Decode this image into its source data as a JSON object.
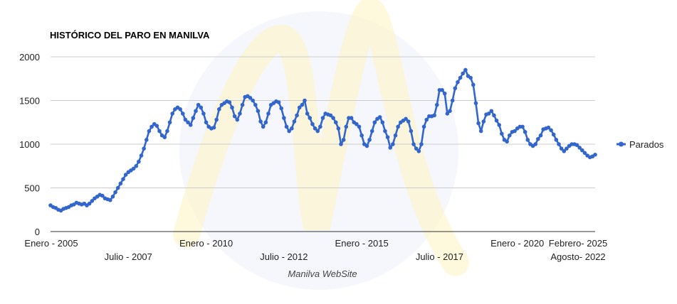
{
  "chart_data": {
    "type": "line",
    "title": "HISTÓRICO DEL PARO EN MANILVA",
    "source": "Manilva WebSite",
    "xlabel": "",
    "ylabel": "",
    "ylim": [
      0,
      2000
    ],
    "y_ticks": [
      0,
      500,
      1000,
      1500,
      2000
    ],
    "grid": true,
    "legend_position": "right",
    "x_tick_labels": [
      {
        "label": "Enero - 2005",
        "index": 0
      },
      {
        "label": "Julio - 2007",
        "index": 30
      },
      {
        "label": "Enero - 2010",
        "index": 60
      },
      {
        "label": "Julio - 2012",
        "index": 90
      },
      {
        "label": "Enero - 2015",
        "index": 120
      },
      {
        "label": "Julio - 2017",
        "index": 150
      },
      {
        "label": "Enero - 2020",
        "index": 180
      },
      {
        "label": "Agosto- 2022",
        "index": 211
      },
      {
        "label": "Febrero- 2025",
        "index": 241
      }
    ],
    "series": [
      {
        "name": "Parados",
        "color": "#3366cc",
        "start": "Enero - 2005",
        "frequency": "monthly",
        "values": [
          300,
          280,
          270,
          250,
          240,
          260,
          270,
          280,
          300,
          310,
          330,
          320,
          310,
          320,
          300,
          320,
          350,
          380,
          400,
          420,
          410,
          380,
          370,
          360,
          400,
          450,
          500,
          550,
          600,
          650,
          680,
          700,
          720,
          750,
          800,
          870,
          950,
          1050,
          1150,
          1200,
          1230,
          1210,
          1150,
          1100,
          1080,
          1150,
          1250,
          1350,
          1400,
          1420,
          1400,
          1350,
          1280,
          1250,
          1220,
          1300,
          1380,
          1450,
          1420,
          1350,
          1250,
          1200,
          1180,
          1190,
          1280,
          1400,
          1450,
          1470,
          1490,
          1480,
          1420,
          1320,
          1280,
          1350,
          1450,
          1540,
          1550,
          1530,
          1500,
          1450,
          1380,
          1260,
          1200,
          1250,
          1350,
          1450,
          1470,
          1490,
          1480,
          1410,
          1300,
          1200,
          1150,
          1180,
          1260,
          1330,
          1420,
          1450,
          1500,
          1350,
          1300,
          1230,
          1180,
          1150,
          1200,
          1300,
          1350,
          1340,
          1330,
          1300,
          1250,
          1180,
          1000,
          1050,
          1200,
          1300,
          1300,
          1250,
          1230,
          1200,
          1100,
          1000,
          980,
          1050,
          1150,
          1250,
          1290,
          1310,
          1250,
          1150,
          1080,
          960,
          1000,
          1100,
          1200,
          1250,
          1270,
          1290,
          1260,
          1150,
          1000,
          950,
          920,
          1000,
          1200,
          1280,
          1320,
          1320,
          1330,
          1450,
          1620,
          1620,
          1580,
          1350,
          1380,
          1500,
          1640,
          1710,
          1760,
          1810,
          1850,
          1780,
          1760,
          1680,
          1470,
          1240,
          1150,
          1260,
          1340,
          1350,
          1380,
          1330,
          1270,
          1220,
          1120,
          1050,
          1030,
          1100,
          1140,
          1150,
          1180,
          1200,
          1200,
          1140,
          1050,
          1000,
          980,
          1000,
          1060,
          1100,
          1170,
          1180,
          1190,
          1160,
          1110,
          1050,
          1000,
          950,
          920,
          950,
          980,
          1000,
          1000,
          990,
          960,
          930,
          900,
          870,
          850,
          860,
          880
        ]
      }
    ]
  }
}
